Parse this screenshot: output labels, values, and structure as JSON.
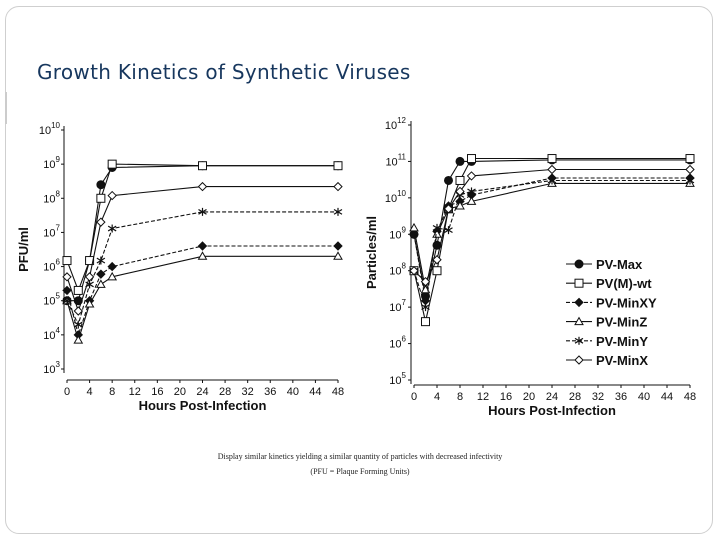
{
  "slide": {
    "title": "Growth Kinetics of Synthetic Viruses",
    "caption_line1": "Display similar kinetics yielding a similar quantity of particles with decreased infectivity",
    "caption_line2": "(PFU = Plaque Forming Units)"
  },
  "chart_data": [
    {
      "type": "line",
      "y_scale": "log",
      "xlabel": "Hours Post-Infection",
      "ylabel": "PFU/ml",
      "xlim": [
        0,
        48
      ],
      "x_ticks": [
        0,
        4,
        8,
        12,
        16,
        20,
        24,
        28,
        32,
        36,
        40,
        44,
        48
      ],
      "ylim": [
        1000,
        10000000000
      ],
      "y_tick_exponents": [
        3,
        4,
        5,
        6,
        7,
        8,
        9,
        10
      ],
      "x": [
        0,
        2,
        4,
        6,
        8,
        24,
        48
      ],
      "series": [
        {
          "name": "PV-Max",
          "marker": "filled-circle",
          "values": [
            100000.0,
            100000.0,
            1500000.0,
            250000000.0,
            800000000.0,
            900000000.0,
            900000000.0
          ]
        },
        {
          "name": "PV(M)-wt",
          "marker": "open-square",
          "values": [
            1500000.0,
            200000.0,
            1500000.0,
            100000000.0,
            1000000000.0,
            900000000.0,
            900000000.0
          ]
        },
        {
          "name": "PV-MinXY",
          "marker": "filled-diamond",
          "values": [
            200000.0,
            10000.0,
            100000.0,
            600000.0,
            1000000.0,
            4000000.0,
            4000000.0
          ]
        },
        {
          "name": "PV-MinZ",
          "marker": "open-triangle",
          "values": [
            100000.0,
            7000.0,
            80000.0,
            300000.0,
            500000.0,
            2000000.0,
            2000000.0
          ]
        },
        {
          "name": "PV-MinY",
          "marker": "asterisk",
          "values": [
            100000.0,
            20000.0,
            300000.0,
            1500000.0,
            13000000.0,
            40000000.0,
            40000000.0
          ]
        },
        {
          "name": "PV-MinX",
          "marker": "open-diamond",
          "values": [
            500000.0,
            50000.0,
            500000.0,
            20000000.0,
            120000000.0,
            220000000.0,
            220000000.0
          ]
        }
      ]
    },
    {
      "type": "line",
      "y_scale": "log",
      "xlabel": "Hours Post-Infection",
      "ylabel": "Particles/ml",
      "xlim": [
        0,
        48
      ],
      "x_ticks": [
        0,
        4,
        8,
        12,
        16,
        20,
        24,
        28,
        32,
        36,
        40,
        44,
        48
      ],
      "ylim": [
        100000,
        1000000000000
      ],
      "y_tick_exponents": [
        5,
        6,
        7,
        8,
        9,
        10,
        11,
        12
      ],
      "x": [
        0,
        2,
        4,
        6,
        8,
        10,
        24,
        48
      ],
      "series": [
        {
          "name": "PV-Max",
          "marker": "filled-circle",
          "values": [
            1000000000.0,
            20000000.0,
            500000000.0,
            30000000000.0,
            100000000000.0,
            100000000000.0,
            110000000000.0,
            110000000000.0
          ]
        },
        {
          "name": "PV(M)-wt",
          "marker": "open-square",
          "values": [
            100000000.0,
            4000000.0,
            100000000.0,
            5000000000.0,
            30000000000.0,
            120000000000.0,
            120000000000.0,
            120000000000.0
          ]
        },
        {
          "name": "PV-MinXY",
          "marker": "filled-diamond",
          "values": [
            1000000000.0,
            15000000.0,
            1200000000.0,
            6000000000.0,
            8000000000.0,
            12000000000.0,
            35000000000.0,
            35000000000.0
          ]
        },
        {
          "name": "PV-MinZ",
          "marker": "open-triangle",
          "values": [
            1500000000.0,
            30000000.0,
            1000000000.0,
            5000000000.0,
            6000000000.0,
            8000000000.0,
            25000000000.0,
            25000000000.0
          ]
        },
        {
          "name": "PV-MinY",
          "marker": "asterisk",
          "values": [
            100000000.0,
            10000000.0,
            1500000000.0,
            1300000000.0,
            12000000000.0,
            15000000000.0,
            30000000000.0,
            30000000000.0
          ]
        },
        {
          "name": "PV-MinX",
          "marker": "open-diamond",
          "values": [
            100000000.0,
            50000000.0,
            200000000.0,
            5000000000.0,
            15000000000.0,
            40000000000.0,
            60000000000.0,
            60000000000.0
          ]
        }
      ],
      "legend": {
        "placement": "lower-right",
        "entries": [
          "PV-Max",
          "PV(M)-wt",
          "PV-MinXY",
          "PV-MinZ",
          "PV-MinY",
          "PV-MinX"
        ]
      }
    }
  ]
}
